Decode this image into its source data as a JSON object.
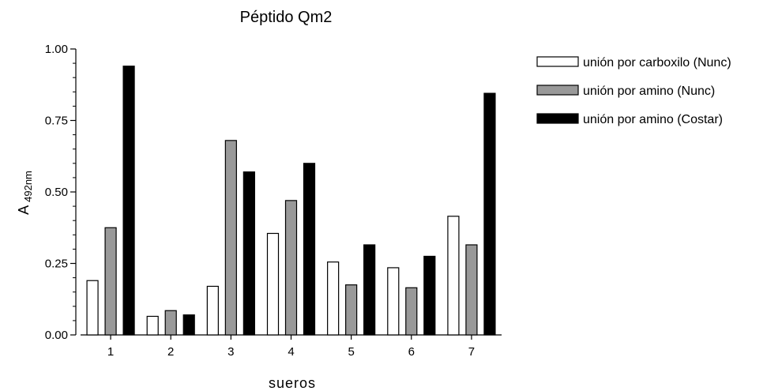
{
  "chart_data": {
    "type": "bar",
    "title": "Péptido Qm2",
    "xlabel": "sueros",
    "ylabel_main": "A",
    "ylabel_sub": "492nm",
    "ylim": [
      0,
      1.0
    ],
    "yticks": [
      "0.00",
      "0.25",
      "0.50",
      "0.75",
      "1.00"
    ],
    "categories": [
      "1",
      "2",
      "3",
      "4",
      "5",
      "6",
      "7"
    ],
    "legend_position": "right",
    "grid": false,
    "series": [
      {
        "name": "unión por carboxilo (Nunc)",
        "color": "#ffffff",
        "values": [
          0.19,
          0.065,
          0.17,
          0.355,
          0.255,
          0.235,
          0.415
        ]
      },
      {
        "name": "unión por amino (Nunc)",
        "color": "#999999",
        "values": [
          0.375,
          0.085,
          0.68,
          0.47,
          0.175,
          0.165,
          0.315
        ]
      },
      {
        "name": "unión por amino (Costar)",
        "color": "#000000",
        "values": [
          0.94,
          0.07,
          0.57,
          0.6,
          0.315,
          0.275,
          0.845
        ]
      }
    ]
  }
}
